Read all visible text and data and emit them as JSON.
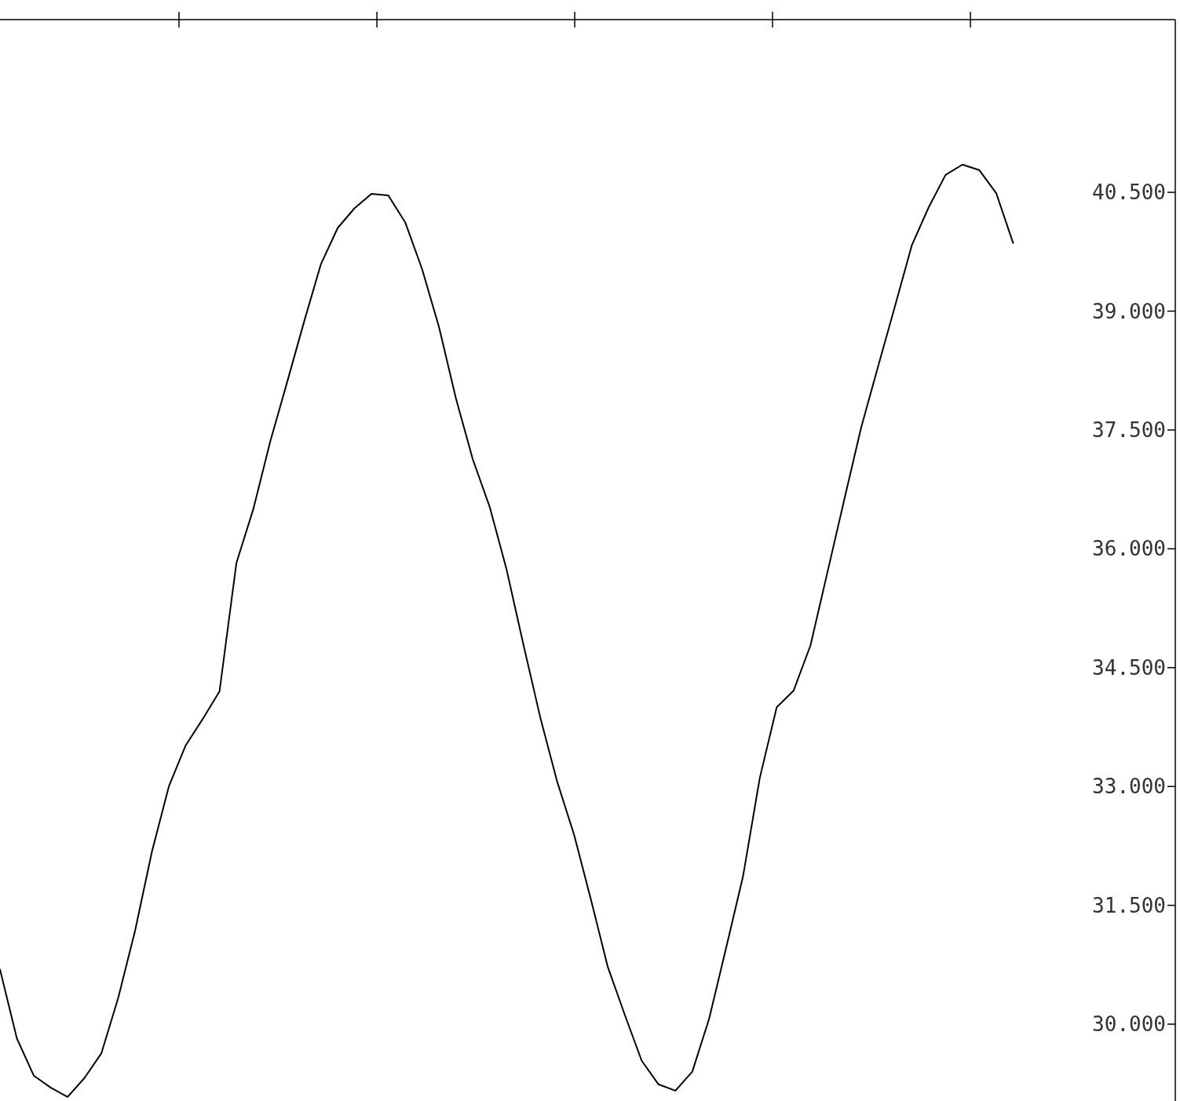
{
  "chart_data": {
    "type": "line",
    "tick_labels": "y",
    "grid": false,
    "marker": "none",
    "line_style": "solid",
    "categories": [
      null,
      null,
      null,
      null,
      null,
      null,
      null,
      null,
      null,
      null,
      null,
      null,
      null,
      null,
      null,
      null,
      null,
      null,
      null,
      null,
      null,
      null,
      null,
      null,
      null,
      null,
      null,
      null,
      null,
      null,
      null,
      null,
      null,
      null,
      null,
      null,
      null,
      null,
      null,
      null,
      null,
      null,
      null,
      null,
      null,
      null,
      null,
      null,
      null,
      null,
      null,
      null,
      null,
      null,
      null,
      null,
      null,
      null,
      null,
      null,
      null
    ],
    "ylim": [
      29.03,
      42.68
    ],
    "yticks": [
      {
        "value": 30,
        "label": "30.000"
      },
      {
        "value": 31.5,
        "label": "31.500"
      },
      {
        "value": 33,
        "label": "33.000"
      },
      {
        "value": 34.5,
        "label": "34.500"
      },
      {
        "value": 36,
        "label": "36.000"
      },
      {
        "value": 37.5,
        "label": "37.500"
      },
      {
        "value": 39,
        "label": "39.000"
      },
      {
        "value": 40.5,
        "label": "40.500"
      }
    ],
    "series": [
      {
        "color": "#000000",
        "values": [
          30.69,
          29.82,
          29.35,
          29.2,
          29.08,
          29.32,
          29.63,
          30.33,
          31.18,
          32.18,
          33.0,
          33.52,
          33.85,
          34.2,
          35.82,
          36.5,
          37.35,
          38.1,
          38.86,
          39.59,
          40.05,
          40.3,
          40.48,
          40.46,
          40.12,
          39.53,
          38.8,
          37.9,
          37.13,
          36.53,
          35.74,
          34.79,
          33.87,
          33.06,
          32.39,
          31.57,
          30.72,
          30.12,
          29.54,
          29.24,
          29.16,
          29.4,
          30.07,
          30.96,
          31.86,
          33.11,
          34.0,
          34.21,
          34.78,
          35.7,
          36.62,
          37.53,
          38.3,
          39.06,
          39.83,
          40.31,
          40.72,
          40.85,
          40.78,
          40.49,
          39.86
        ]
      }
    ]
  }
}
